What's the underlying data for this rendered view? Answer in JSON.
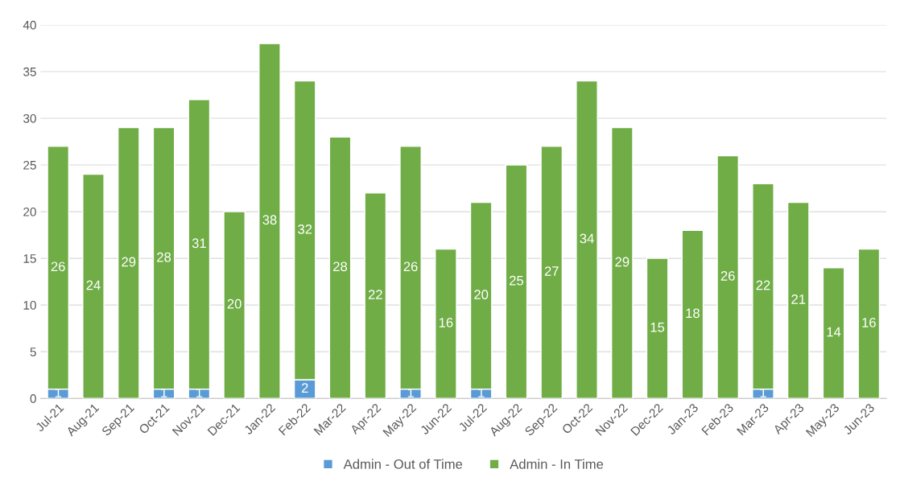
{
  "chart_data": {
    "type": "bar",
    "stacked": true,
    "categories": [
      "Jul-21",
      "Aug-21",
      "Sep-21",
      "Oct-21",
      "Nov-21",
      "Dec-21",
      "Jan-22",
      "Feb-22",
      "Mar-22",
      "Apr-22",
      "May-22",
      "Jun-22",
      "Jul-22",
      "Aug-22",
      "Sep-22",
      "Oct-22",
      "Nov-22",
      "Dec-22",
      "Jan-23",
      "Feb-23",
      "Mar-23",
      "Apr-23",
      "May-23",
      "Jun-23"
    ],
    "series": [
      {
        "name": "Admin - Out of Time",
        "color": "#5b9bd5",
        "values": [
          1,
          0,
          0,
          1,
          1,
          0,
          0,
          2,
          0,
          0,
          1,
          0,
          1,
          0,
          0,
          0,
          0,
          0,
          0,
          0,
          1,
          0,
          0,
          0
        ],
        "value_labels": [
          "1",
          null,
          null,
          "1",
          "1",
          null,
          null,
          "2",
          null,
          null,
          "1",
          null,
          "1",
          null,
          null,
          null,
          null,
          null,
          null,
          null,
          "1",
          null,
          null,
          null
        ]
      },
      {
        "name": "Admin - In Time",
        "color": "#70ad47",
        "values": [
          26,
          24,
          29,
          28,
          31,
          20,
          38,
          32,
          28,
          22,
          26,
          16,
          20,
          25,
          27,
          34,
          29,
          15,
          18,
          26,
          22,
          21,
          14,
          16
        ],
        "value_labels": [
          "26",
          "24",
          "29",
          "28",
          "31",
          "20",
          "38",
          "32",
          "28",
          "22",
          "26",
          "16",
          "20",
          "25",
          "27",
          "34",
          "29",
          "15",
          "18",
          "26",
          "22",
          "21",
          "14",
          "16"
        ]
      }
    ],
    "ylim": [
      0,
      40
    ],
    "yticks": [
      0,
      5,
      10,
      15,
      20,
      25,
      30,
      35,
      40
    ],
    "grid": "y",
    "legend": "bottom"
  }
}
